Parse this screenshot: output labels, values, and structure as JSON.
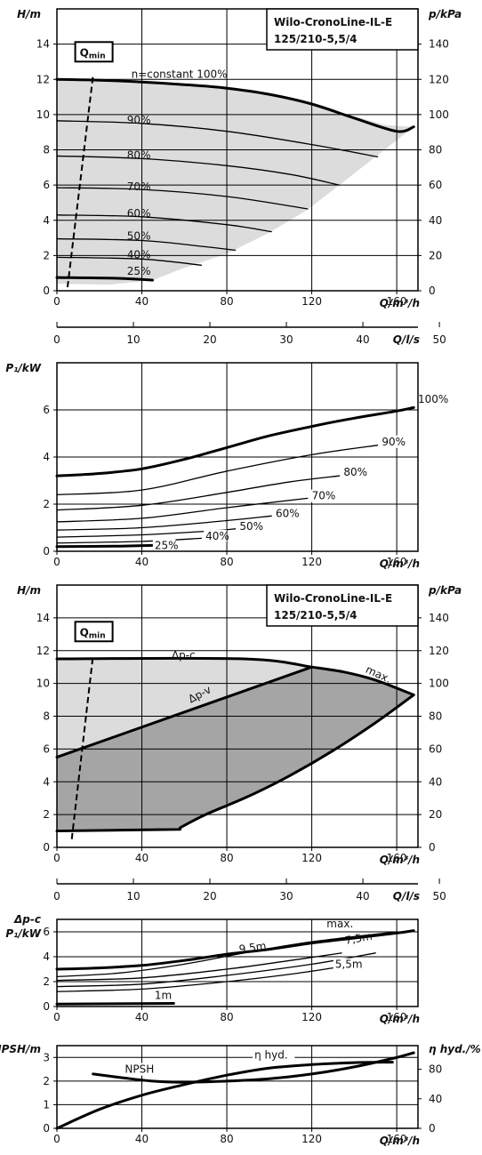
{
  "chart_data": [
    {
      "id": "h1",
      "type": "line",
      "title": "Wilo-CronoLine-IL-E",
      "subtitle": "125/210-5,5/4",
      "xlabel": "Q/m³/h",
      "ylabel": "H/m",
      "y2label": "p/kPa",
      "xlim": [
        0,
        170
      ],
      "ylim": [
        0,
        16
      ],
      "x_ticks": [
        "0",
        "40",
        "80",
        "120",
        "160"
      ],
      "y_ticks": [
        "0",
        "2",
        "4",
        "6",
        "8",
        "10",
        "12",
        "14"
      ],
      "y2_ticks": [
        "0",
        "20",
        "40",
        "60",
        "80",
        "100",
        "120",
        "140"
      ],
      "qmin_label": "Q",
      "qmin_sub": "min",
      "qmin_line": [
        [
          5,
          0.2
        ],
        [
          17,
          12.2
        ]
      ],
      "operating_area": [
        [
          0,
          12
        ],
        [
          20,
          11.95
        ],
        [
          40,
          11.85
        ],
        [
          60,
          11.7
        ],
        [
          80,
          11.5
        ],
        [
          100,
          11.15
        ],
        [
          120,
          10.6
        ],
        [
          140,
          9.9
        ],
        [
          155,
          9.4
        ],
        [
          168,
          9.3
        ],
        [
          150,
          7.6
        ],
        [
          133,
          6.0
        ],
        [
          118,
          4.6
        ],
        [
          100,
          3.3
        ],
        [
          80,
          2.1
        ],
        [
          60,
          1.3
        ],
        [
          45,
          0.6
        ],
        [
          25,
          0.35
        ],
        [
          0,
          0.4
        ]
      ],
      "series": [
        {
          "name": "n=constant 100%",
          "heavy": true,
          "x": [
            0,
            20,
            40,
            60,
            80,
            100,
            120,
            140,
            160,
            168
          ],
          "y": [
            12.0,
            11.95,
            11.85,
            11.7,
            11.5,
            11.15,
            10.6,
            9.8,
            9.05,
            9.3
          ]
        },
        {
          "name": "90%",
          "x": [
            0,
            40,
            80,
            120,
            151
          ],
          "y": [
            9.65,
            9.5,
            9.05,
            8.3,
            7.6
          ]
        },
        {
          "name": "80%",
          "x": [
            0,
            40,
            80,
            110,
            133
          ],
          "y": [
            7.65,
            7.5,
            7.1,
            6.6,
            6.0
          ]
        },
        {
          "name": "70%",
          "x": [
            0,
            40,
            80,
            118
          ],
          "y": [
            5.85,
            5.75,
            5.35,
            4.65
          ]
        },
        {
          "name": "60%",
          "x": [
            0,
            40,
            80,
            101
          ],
          "y": [
            4.3,
            4.2,
            3.75,
            3.35
          ]
        },
        {
          "name": "50%",
          "x": [
            0,
            40,
            70,
            84
          ],
          "y": [
            2.95,
            2.85,
            2.5,
            2.3
          ]
        },
        {
          "name": "40%",
          "x": [
            0,
            40,
            68
          ],
          "y": [
            1.9,
            1.8,
            1.45
          ]
        },
        {
          "name": "25%",
          "heavy": true,
          "x": [
            0,
            30,
            45
          ],
          "y": [
            0.75,
            0.7,
            0.6
          ]
        }
      ],
      "labels": [
        {
          "text": "n=constant 100%",
          "x": 35,
          "y": 12.1
        },
        {
          "text": "90%",
          "x": 33,
          "y": 9.5
        },
        {
          "text": "80%",
          "x": 33,
          "y": 7.5
        },
        {
          "text": "70%",
          "x": 33,
          "y": 5.7
        },
        {
          "text": "60%",
          "x": 33,
          "y": 4.2
        },
        {
          "text": "50%",
          "x": 33,
          "y": 2.9
        },
        {
          "text": "40%",
          "x": 33,
          "y": 1.85
        },
        {
          "text": "25%",
          "x": 33,
          "y": 0.9
        }
      ]
    },
    {
      "id": "qls1",
      "type": "axis",
      "xlabel": "Q/l/s",
      "xlim": [
        0,
        47.2
      ],
      "x_ticks": [
        "0",
        "10",
        "20",
        "30",
        "40",
        "50"
      ]
    },
    {
      "id": "p1",
      "type": "line",
      "xlabel": "Q/m³/h",
      "ylabel": "P₁/kW",
      "xlim": [
        0,
        170
      ],
      "ylim": [
        0,
        8
      ],
      "x_ticks": [
        "0",
        "40",
        "80",
        "120",
        "160"
      ],
      "y_ticks": [
        "0",
        "2",
        "4",
        "6"
      ],
      "series": [
        {
          "name": "100%",
          "heavy": true,
          "x": [
            0,
            20,
            40,
            60,
            80,
            100,
            120,
            140,
            160,
            168
          ],
          "y": [
            3.2,
            3.3,
            3.5,
            3.9,
            4.4,
            4.9,
            5.3,
            5.65,
            5.95,
            6.1
          ]
        },
        {
          "name": "90%",
          "x": [
            0,
            40,
            80,
            120,
            151
          ],
          "y": [
            2.4,
            2.6,
            3.4,
            4.1,
            4.5
          ]
        },
        {
          "name": "80%",
          "x": [
            0,
            40,
            80,
            110,
            133
          ],
          "y": [
            1.75,
            1.95,
            2.5,
            2.95,
            3.2
          ]
        },
        {
          "name": "70%",
          "x": [
            0,
            40,
            80,
            118
          ],
          "y": [
            1.25,
            1.4,
            1.85,
            2.25
          ]
        },
        {
          "name": "60%",
          "x": [
            0,
            40,
            80,
            101
          ],
          "y": [
            0.9,
            1.0,
            1.3,
            1.5
          ]
        },
        {
          "name": "50%",
          "x": [
            0,
            40,
            70,
            84
          ],
          "y": [
            0.6,
            0.7,
            0.85,
            0.95
          ]
        },
        {
          "name": "40%",
          "x": [
            0,
            40,
            68
          ],
          "y": [
            0.35,
            0.42,
            0.55
          ]
        },
        {
          "name": "25%",
          "heavy": true,
          "x": [
            0,
            30,
            45
          ],
          "y": [
            0.2,
            0.22,
            0.25
          ]
        }
      ],
      "labels": [
        {
          "text": "100%",
          "x": 170,
          "y": 6.3
        },
        {
          "text": "90%",
          "x": 153,
          "y": 4.5
        },
        {
          "text": "80%",
          "x": 135,
          "y": 3.2
        },
        {
          "text": "70%",
          "x": 120,
          "y": 2.2
        },
        {
          "text": "60%",
          "x": 103,
          "y": 1.45
        },
        {
          "text": "50%",
          "x": 86,
          "y": 0.9
        },
        {
          "text": "40%",
          "x": 70,
          "y": 0.5
        },
        {
          "text": "25%",
          "x": 46,
          "y": 0.1
        }
      ]
    },
    {
      "id": "h2",
      "type": "area",
      "title": "Wilo-CronoLine-IL-E",
      "subtitle": "125/210-5,5/4",
      "xlabel": "Q/m³/h",
      "ylabel": "H/m",
      "y2label": "p/kPa",
      "xlim": [
        0,
        170
      ],
      "ylim": [
        0,
        16
      ],
      "x_ticks": [
        "0",
        "40",
        "80",
        "120",
        "160"
      ],
      "y_ticks": [
        "0",
        "2",
        "4",
        "6",
        "8",
        "10",
        "12",
        "14"
      ],
      "y2_ticks": [
        "0",
        "20",
        "40",
        "60",
        "80",
        "100",
        "120",
        "140"
      ],
      "qmin_label": "Q",
      "qmin_sub": "min",
      "qmin_line": [
        [
          7,
          0.5
        ],
        [
          17,
          11.7
        ]
      ],
      "light_area": [
        [
          0,
          11.5
        ],
        [
          88,
          11.5
        ],
        [
          120,
          11.0
        ],
        [
          0,
          5.5
        ]
      ],
      "dark_area": [
        [
          0,
          5.5
        ],
        [
          120,
          11.0
        ],
        [
          150,
          10.3
        ],
        [
          168,
          9.2
        ],
        [
          150,
          7.6
        ],
        [
          130,
          5.9
        ],
        [
          110,
          4.4
        ],
        [
          90,
          3.1
        ],
        [
          70,
          2.0
        ],
        [
          58,
          1.2
        ],
        [
          0,
          1.0
        ]
      ],
      "series": [
        {
          "name": "Δp-c",
          "heavy": true,
          "x": [
            0,
            88,
            120
          ],
          "y": [
            11.5,
            11.5,
            11.0
          ]
        },
        {
          "name": "max.",
          "heavy": true,
          "x": [
            120,
            135,
            150,
            168
          ],
          "y": [
            11.0,
            10.7,
            10.2,
            9.3
          ]
        },
        {
          "name": "Δp-v",
          "heavy": true,
          "x": [
            0,
            120
          ],
          "y": [
            5.5,
            11.0
          ]
        },
        {
          "name": "max. right",
          "heavy": true,
          "x": [
            168,
            150,
            130,
            110,
            90,
            70,
            58
          ],
          "y": [
            9.3,
            7.6,
            5.9,
            4.4,
            3.1,
            2.0,
            1.2
          ]
        },
        {
          "name": "min",
          "heavy": true,
          "x": [
            0,
            58
          ],
          "y": [
            1.0,
            1.1
          ]
        }
      ],
      "labels": [
        {
          "text": "Δp-c",
          "x": 54,
          "y": 11.5
        },
        {
          "text": "Δp-v",
          "x": 63,
          "y": 8.8,
          "angle": -28
        },
        {
          "text": "max.",
          "x": 145,
          "y": 10.7,
          "angle": 25
        }
      ]
    },
    {
      "id": "qls2",
      "type": "axis",
      "xlabel": "Q/l/s",
      "xlim": [
        0,
        47.2
      ],
      "x_ticks": [
        "0",
        "10",
        "20",
        "30",
        "40",
        "50"
      ]
    },
    {
      "id": "p2",
      "type": "line",
      "xlabel": "Q/m³/h",
      "ylabel": "P₁/kW",
      "ylabel_top": "Δp-c",
      "xlim": [
        0,
        170
      ],
      "ylim": [
        0,
        7
      ],
      "x_ticks": [
        "0",
        "40",
        "80",
        "120",
        "160"
      ],
      "y_ticks": [
        "0",
        "2",
        "4",
        "6"
      ],
      "series": [
        {
          "name": "max.",
          "heavy": true,
          "x": [
            0,
            20,
            40,
            60,
            80,
            100,
            120,
            140,
            160,
            168
          ],
          "y": [
            3.0,
            3.1,
            3.3,
            3.7,
            4.2,
            4.6,
            5.1,
            5.5,
            5.9,
            6.1
          ]
        },
        {
          "name": "Δp-c",
          "x": [
            0,
            30,
            60,
            88,
            120,
            160
          ],
          "y": [
            2.4,
            2.7,
            3.4,
            4.3,
            5.2,
            6.0
          ]
        },
        {
          "name": "9,5m",
          "x": [
            0,
            40,
            80,
            110,
            134
          ],
          "y": [
            2.1,
            2.3,
            3.0,
            3.7,
            4.3
          ]
        },
        {
          "name": "7,5m",
          "x": [
            0,
            40,
            80,
            120,
            150
          ],
          "y": [
            1.6,
            1.8,
            2.5,
            3.4,
            4.3
          ]
        },
        {
          "name": "5,5m",
          "x": [
            0,
            40,
            80,
            110,
            130
          ],
          "y": [
            1.2,
            1.4,
            2.0,
            2.6,
            3.1
          ]
        },
        {
          "name": "1m",
          "heavy": true,
          "x": [
            0,
            55
          ],
          "y": [
            0.2,
            0.25
          ]
        }
      ],
      "labels": [
        {
          "text": "max.",
          "x": 127,
          "y": 6.35
        },
        {
          "text": "9,5m",
          "x": 86,
          "y": 4.3,
          "angle": -8
        },
        {
          "text": "7,5m",
          "x": 136,
          "y": 5.0,
          "angle": -10
        },
        {
          "text": "5,5m",
          "x": 131,
          "y": 3.1
        },
        {
          "text": "1m",
          "x": 46,
          "y": 0.6
        }
      ]
    },
    {
      "id": "npsh",
      "type": "line",
      "xlabel": "Q/m³/h",
      "ylabel": "NPSH/m",
      "y2label": "η hyd./%",
      "xlim": [
        0,
        170
      ],
      "ylim": [
        0,
        3.5
      ],
      "x_ticks": [
        "0",
        "40",
        "80",
        "120",
        "160"
      ],
      "y_ticks": [
        "0",
        "1",
        "2",
        "3"
      ],
      "y2_ticks": [
        "0",
        "40",
        "80"
      ],
      "series": [
        {
          "name": "NPSH",
          "heavy": true,
          "x": [
            17,
            30,
            45,
            60,
            80,
            100,
            120,
            140,
            160,
            168
          ],
          "y": [
            2.3,
            2.15,
            2.0,
            1.95,
            2.0,
            2.1,
            2.3,
            2.6,
            3.0,
            3.2
          ]
        },
        {
          "name": "η hyd.",
          "heavy": true,
          "x": [
            0,
            20,
            40,
            60,
            80,
            100,
            120,
            140,
            158
          ],
          "y": [
            0.0,
            0.8,
            1.4,
            1.85,
            2.25,
            2.55,
            2.7,
            2.78,
            2.8
          ]
        }
      ],
      "labels": [
        {
          "text": "NPSH",
          "x": 32,
          "y": 2.35
        },
        {
          "text": "η hyd.",
          "x": 93,
          "y": 2.95
        }
      ]
    }
  ]
}
